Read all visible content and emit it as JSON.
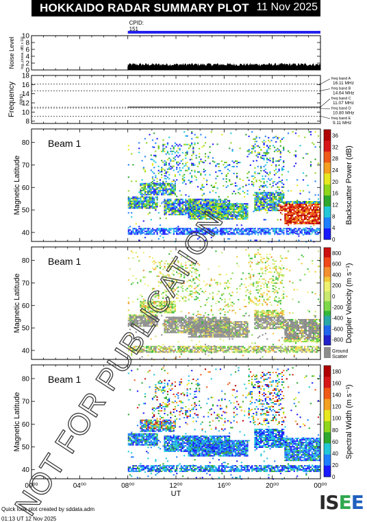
{
  "header": {
    "title": "HOKKAIDO RADAR SUMMARY PLOT",
    "date": "11 Nov 2025"
  },
  "cpid": {
    "label": "CPID:",
    "value": "151"
  },
  "footer": {
    "credit": "Quick look plot created by sddata.adm",
    "timestamp": "01:13 UT 12 Nov 2025",
    "logo_text": "ISEE"
  },
  "watermark": "NOT FOR PUBLICATION",
  "colors": {
    "cpid_bar": "#2222ee",
    "ground_scatter": "#8c8c8c"
  },
  "chart_data": [
    {
      "type": "area",
      "name": "noise",
      "ylabel": "Noise Level",
      "ylabel_sub": "log₁₀(noise, dB) x 10³",
      "yticks": [
        0,
        2,
        4,
        6,
        8,
        10
      ],
      "ylim": [
        0,
        10
      ],
      "x_start_h": 8,
      "x_end_h": 24,
      "level": 1.6
    },
    {
      "type": "line",
      "name": "frequency",
      "ylabel": "Frequency",
      "ylabel_sub": "(MHz)",
      "yticks": [
        8,
        10,
        12,
        14,
        16,
        18
      ],
      "ylim": [
        7.5,
        18
      ],
      "x_start_h": 8,
      "x_end_h": 24,
      "value": 11.07,
      "bands": [
        {
          "label": "freq band A",
          "value": "16.11 MHz",
          "freq": 16.11
        },
        {
          "label": "freq band B",
          "value": "14.64 MHz",
          "freq": 14.64
        },
        {
          "label": "freq band C",
          "value": "11.07 MHz",
          "freq": 11.07
        },
        {
          "label": "freq band D",
          "value": "10.80 MHz",
          "freq": 10.8
        },
        {
          "label": "freq band E",
          "value": "9.11 MHz",
          "freq": 9.11
        }
      ]
    },
    {
      "type": "heatmap",
      "name": "power",
      "beam_label": "Beam  1",
      "ylabel": "Magnetic Latitude",
      "yticks": [
        40,
        50,
        60,
        70,
        80
      ],
      "ylim": [
        36,
        86
      ],
      "colorbar_label": "Backscatter Power (dB)",
      "colorbar_ticks": [
        "0",
        "4",
        "8",
        "12",
        "16",
        "20",
        "24",
        "28",
        "32",
        "36"
      ],
      "colorbar_range": [
        0,
        39
      ],
      "ground_scatter": false
    },
    {
      "type": "heatmap",
      "name": "velocity",
      "beam_label": "Beam  1",
      "ylabel": "Magnetic Latitude",
      "yticks": [
        40,
        50,
        60,
        70,
        80
      ],
      "ylim": [
        36,
        86
      ],
      "colorbar_label": "Doppler Velocity (m s⁻¹)",
      "colorbar_ticks": [
        "800",
        "600",
        "400",
        "200",
        "0",
        "-200",
        "-400",
        "-600",
        "-800"
      ],
      "colorbar_range": [
        -900,
        900
      ],
      "ground_scatter": true,
      "ground_scatter_label": "Ground Scatter"
    },
    {
      "type": "heatmap",
      "name": "width",
      "beam_label": "Beam  1",
      "ylabel": "Magnetic Latitude",
      "yticks": [
        40,
        50,
        60,
        70,
        80
      ],
      "ylim": [
        36,
        86
      ],
      "colorbar_label": "Spectral Width (m s⁻¹)",
      "colorbar_ticks": [
        "0",
        "20",
        "40",
        "60",
        "80",
        "100",
        "120",
        "140",
        "160",
        "180"
      ],
      "colorbar_range": [
        0,
        195
      ],
      "ground_scatter": false
    }
  ],
  "x_axis": {
    "label": "UT",
    "ticks": [
      "00⁰⁰",
      "04⁰⁰",
      "08⁰⁰",
      "12⁰⁰",
      "16⁰⁰",
      "20⁰⁰",
      "00⁰⁰"
    ],
    "range_h": [
      0,
      24
    ]
  }
}
